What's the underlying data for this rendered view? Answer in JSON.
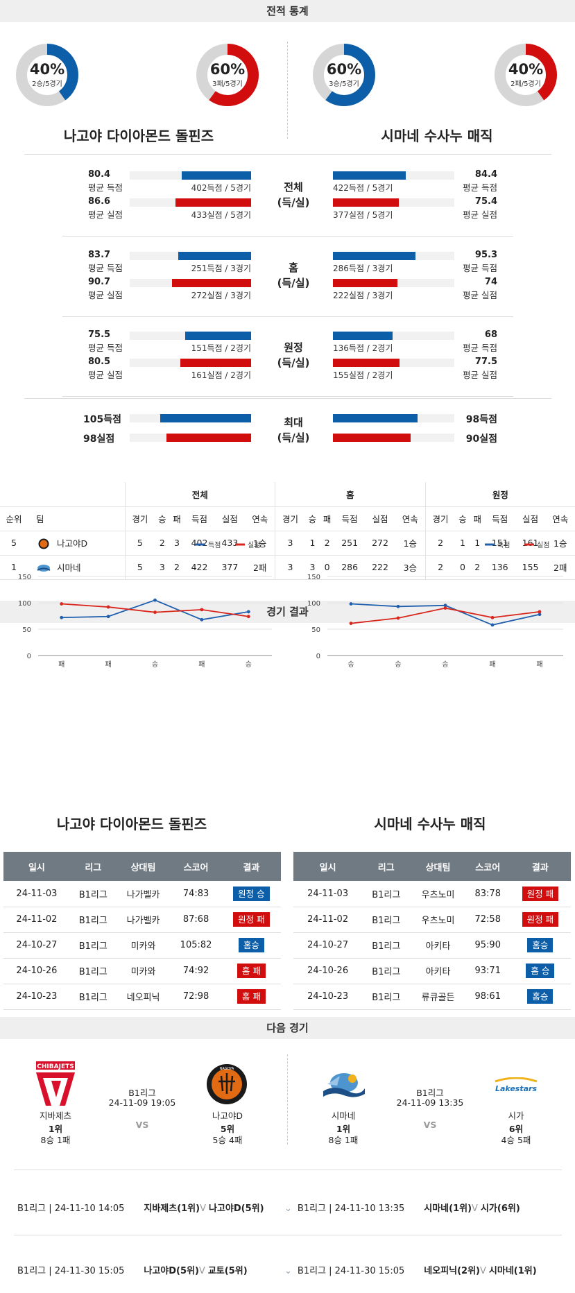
{
  "sections": {
    "stats": "전적 통계",
    "results": "경기 결과",
    "next": "다음 경기"
  },
  "teams": {
    "home": "나고야 다이아몬드 돌핀즈",
    "away": "시마네 수사누 매직"
  },
  "donuts": [
    {
      "pct": "40%",
      "sub": "2승/5경기",
      "value": 0.4,
      "color": "#0d5ea8"
    },
    {
      "pct": "60%",
      "sub": "3패/5경기",
      "value": 0.6,
      "color": "#d20d0d"
    },
    {
      "pct": "60%",
      "sub": "3승/5경기",
      "value": 0.6,
      "color": "#0d5ea8"
    },
    {
      "pct": "40%",
      "sub": "2패/5경기",
      "value": 0.4,
      "color": "#d20d0d"
    }
  ],
  "compare": [
    {
      "label1": "전체",
      "label2": "(득/실)",
      "rows": [
        {
          "lv": "80.4",
          "ll": "평균 득점",
          "lc": "402득점 / 5경기",
          "lf": 0.57,
          "rv": "84.4",
          "rl": "평균 득점",
          "rc": "422득점 / 5경기",
          "rf": 0.6,
          "color": "blue"
        },
        {
          "lv": "86.6",
          "ll": "평균 실점",
          "lc": "433실점 / 5경기",
          "lf": 0.62,
          "rv": "75.4",
          "rl": "평균 실점",
          "rc": "377실점 / 5경기",
          "rf": 0.54,
          "color": "red"
        }
      ]
    },
    {
      "label1": "홈",
      "label2": "(득/실)",
      "rows": [
        {
          "lv": "83.7",
          "ll": "평균 득점",
          "lc": "251득점 / 3경기",
          "lf": 0.6,
          "rv": "95.3",
          "rl": "평균 득점",
          "rc": "286득점 / 3경기",
          "rf": 0.68,
          "color": "blue"
        },
        {
          "lv": "90.7",
          "ll": "평균 실점",
          "lc": "272실점 / 3경기",
          "lf": 0.65,
          "rv": "74",
          "rl": "평균 실점",
          "rc": "222실점 / 3경기",
          "rf": 0.53,
          "color": "red"
        }
      ]
    },
    {
      "label1": "원정",
      "label2": "(득/실)",
      "rows": [
        {
          "lv": "75.5",
          "ll": "평균 득점",
          "lc": "151득점 / 2경기",
          "lf": 0.54,
          "rv": "68",
          "rl": "평균 득점",
          "rc": "136득점 / 2경기",
          "rf": 0.49,
          "color": "blue"
        },
        {
          "lv": "80.5",
          "ll": "평균 실점",
          "lc": "161실점 / 2경기",
          "lf": 0.58,
          "rv": "77.5",
          "rl": "평균 실점",
          "rc": "155실점 / 2경기",
          "rf": 0.55,
          "color": "red"
        }
      ]
    }
  ],
  "max": {
    "label1": "최대",
    "label2": "(득/실)",
    "rows": [
      {
        "lv": "105득점",
        "rv": "98득점",
        "lf": 0.75,
        "rf": 0.7,
        "color": "blue"
      },
      {
        "lv": "98실점",
        "rv": "90실점",
        "lf": 0.7,
        "rf": 0.64,
        "color": "red"
      }
    ]
  },
  "standings": {
    "groups": [
      "전체",
      "홈",
      "원정"
    ],
    "headers": [
      "순위",
      "팀",
      "경기",
      "승",
      "패",
      "득점",
      "실점",
      "연속",
      "경기",
      "승",
      "패",
      "득점",
      "실점",
      "연속",
      "경기",
      "승",
      "패",
      "득점",
      "실점",
      "연속"
    ],
    "rows": [
      [
        "5",
        "나고야D",
        "5",
        "2",
        "3",
        "402",
        "433",
        "1승",
        "3",
        "1",
        "2",
        "251",
        "272",
        "1승",
        "2",
        "1",
        "1",
        "151",
        "161",
        "1승"
      ],
      [
        "1",
        "시마네",
        "5",
        "3",
        "2",
        "422",
        "377",
        "2패",
        "3",
        "3",
        "0",
        "286",
        "222",
        "3승",
        "2",
        "0",
        "2",
        "136",
        "155",
        "2패"
      ]
    ]
  },
  "chart_data": [
    {
      "type": "line",
      "categories": [
        "패",
        "패",
        "승",
        "패",
        "승"
      ],
      "ylim": [
        0,
        150
      ],
      "yticks": [
        0,
        50,
        100,
        150
      ],
      "series": [
        {
          "name": "득점",
          "color": "#1f5fae",
          "values": [
            72,
            74,
            105,
            68,
            83
          ]
        },
        {
          "name": "실점",
          "color": "#d9261c",
          "values": [
            98,
            92,
            82,
            87,
            74
          ]
        }
      ]
    },
    {
      "type": "line",
      "categories": [
        "승",
        "승",
        "승",
        "패",
        "패"
      ],
      "ylim": [
        0,
        150
      ],
      "yticks": [
        0,
        50,
        100,
        150
      ],
      "series": [
        {
          "name": "득점",
          "color": "#1f5fae",
          "values": [
            98,
            93,
            95,
            58,
            78
          ]
        },
        {
          "name": "실점",
          "color": "#d9261c",
          "values": [
            61,
            71,
            90,
            72,
            83
          ]
        }
      ]
    }
  ],
  "results": {
    "headers": [
      "일시",
      "리그",
      "상대팀",
      "스코어",
      "결과"
    ],
    "home": [
      [
        "24-11-03",
        "B1리그",
        "나가벨카",
        "74:83",
        "원정 승",
        "w"
      ],
      [
        "24-11-02",
        "B1리그",
        "나가벨카",
        "87:68",
        "원정 패",
        "l"
      ],
      [
        "24-10-27",
        "B1리그",
        "미카와",
        "105:82",
        "홈승",
        "w"
      ],
      [
        "24-10-26",
        "B1리그",
        "미카와",
        "74:92",
        "홈 패",
        "l"
      ],
      [
        "24-10-23",
        "B1리그",
        "네오피닉",
        "72:98",
        "홈 패",
        "l"
      ]
    ],
    "away": [
      [
        "24-11-03",
        "B1리그",
        "우츠노미",
        "83:78",
        "원정 패",
        "l"
      ],
      [
        "24-11-02",
        "B1리그",
        "우츠노미",
        "72:58",
        "원정 패",
        "l"
      ],
      [
        "24-10-27",
        "B1리그",
        "아키타",
        "95:90",
        "홈승",
        "w"
      ],
      [
        "24-10-26",
        "B1리그",
        "아키타",
        "93:71",
        "홈 승",
        "w"
      ],
      [
        "24-10-23",
        "B1리그",
        "류큐골든",
        "98:61",
        "홈승",
        "w"
      ]
    ]
  },
  "next": {
    "left": {
      "t1": "지바제츠",
      "r1": "1위",
      "rec1": "8승 1패",
      "league": "B1리그",
      "dt": "24-11-09 19:05",
      "vs": "VS",
      "t2": "나고야D",
      "r2": "5위",
      "rec2": "5승 4패",
      "logo1": "CHIBAJETS",
      "logo2": "NAGOYA"
    },
    "right": {
      "t1": "시마네",
      "r1": "1위",
      "rec1": "8승 1패",
      "league": "B1리그",
      "dt": "24-11-09 13:35",
      "vs": "VS",
      "t2": "시가",
      "r2": "6위",
      "rec2": "4승 5패",
      "logo2": "Lakestars"
    }
  },
  "upcoming": [
    {
      "l": "B1리그 | 24-11-10 14:05",
      "lt": "지바제츠(1위)",
      "lv": "V",
      "lt2": "나고야D(5위)",
      "r": "B1리그 | 24-11-10 13:35",
      "rt": "시마네(1위)",
      "rv": "V",
      "rt2": "시가(6위)"
    },
    {
      "l": "B1리그 | 24-11-30 15:05",
      "lt": "나고야D(5위)",
      "lv": "V",
      "lt2": "교토(5위)",
      "r": "B1리그 | 24-11-30 15:05",
      "rt": "네오피닉(2위)",
      "rv": "V",
      "rt2": "시마네(1위)"
    }
  ]
}
